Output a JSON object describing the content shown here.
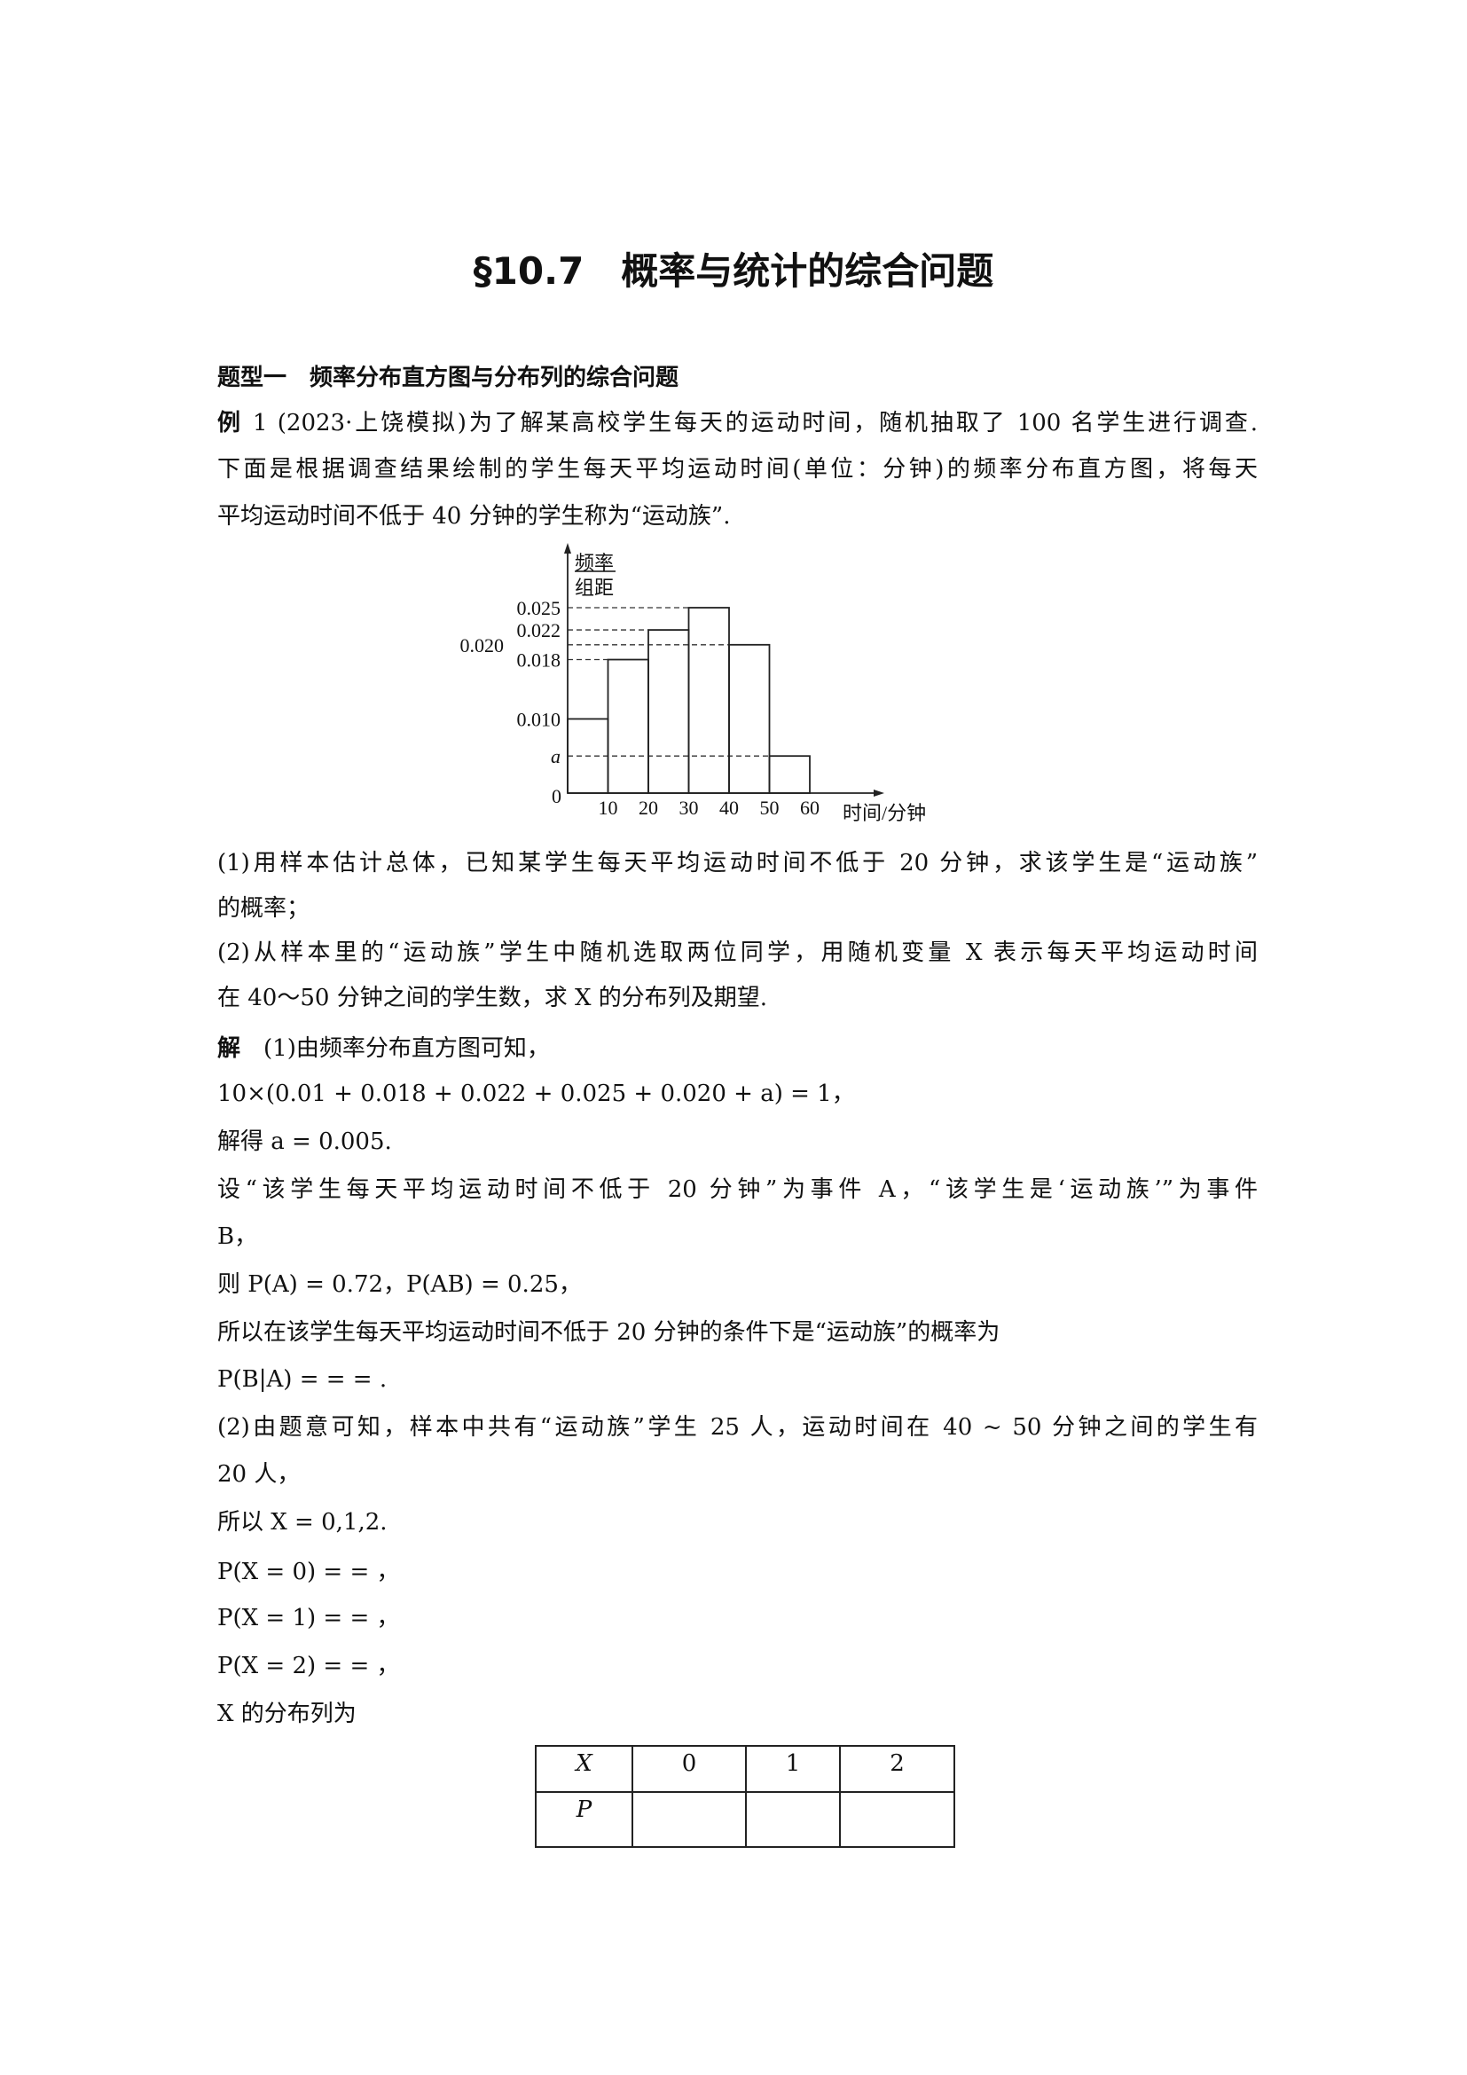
{
  "title": "§10.7　概率与统计的综合问题",
  "section": "题型一　频率分布直方图与分布列的综合问题",
  "example": {
    "label": "例",
    "lines": [
      " 1 (2023·上饶模拟)为了解某高校学生每天的运动时间，随机抽取了 100 名学生进行调查.",
      "下面是根据调查结果绘制的学生每天平均运动时间(单位：分钟)的频率分布直方图，将每天",
      "平均运动时间不低于 40 分钟的学生称为“运动族”."
    ]
  },
  "chart_data": {
    "type": "bar",
    "title": "",
    "ylabel_num": "频率",
    "ylabel_den": "组距",
    "xlabel": "时间/分钟",
    "bins": [
      [
        0,
        10
      ],
      [
        10,
        20
      ],
      [
        20,
        30
      ],
      [
        30,
        40
      ],
      [
        40,
        50
      ],
      [
        50,
        60
      ]
    ],
    "values": [
      0.01,
      0.018,
      0.022,
      0.025,
      0.02,
      0.005
    ],
    "x_ticks": [
      "10",
      "20",
      "30",
      "40",
      "50",
      "60"
    ],
    "y_ticks": [
      {
        "value": 0.025,
        "label": "0.025"
      },
      {
        "value": 0.022,
        "label": "0.022"
      },
      {
        "value": 0.02,
        "label": "0.020"
      },
      {
        "value": 0.018,
        "label": "0.018"
      },
      {
        "value": 0.01,
        "label": "0.010"
      },
      {
        "value": 0.005,
        "label": "a"
      }
    ],
    "origin_label": "0",
    "dashed_refs": [
      0.025,
      0.022,
      0.02,
      0.018,
      0.005
    ],
    "xlim": [
      0,
      60
    ],
    "ylim": [
      0,
      0.025
    ]
  },
  "questions": [
    "(1)用样本估计总体，已知某学生每天平均运动时间不低于 20 分钟，求该学生是“运动族”",
    "的概率；",
    "(2)从样本里的“运动族”学生中随机选取两位同学，用随机变量 X 表示每天平均运动时间",
    "在 40～50 分钟之间的学生数，求 X 的分布列及期望."
  ],
  "solution": {
    "label": "解",
    "lines": [
      "(1)由频率分布直方图可知，",
      "10×(0.01 + 0.018 + 0.022 + 0.025 + 0.020 + a) = 1，",
      "解得 a = 0.005.",
      "设“该学生每天平均运动时间不低于 20 分钟”为事件 A，“该学生是‘运动族’”为事件",
      "B，",
      "则 P(A) = 0.72，P(AB) = 0.25，",
      "所以在该学生每天平均运动时间不低于 20 分钟的条件下是“运动族”的概率为",
      "P(B|A) = = = .",
      "(2)由题意可知，样本中共有“运动族”学生 25 人，运动时间在 40 ~ 50 分钟之间的学生有",
      "20 人，",
      "所以 X = 0,1,2.",
      "P(X = 0) = = ，",
      "P(X = 1) = = ，",
      "P(X = 2) = = ，",
      "X 的分布列为"
    ]
  },
  "table": {
    "header": [
      "X",
      "0",
      "1",
      "2"
    ],
    "row": [
      "P",
      "",
      "",
      ""
    ]
  }
}
